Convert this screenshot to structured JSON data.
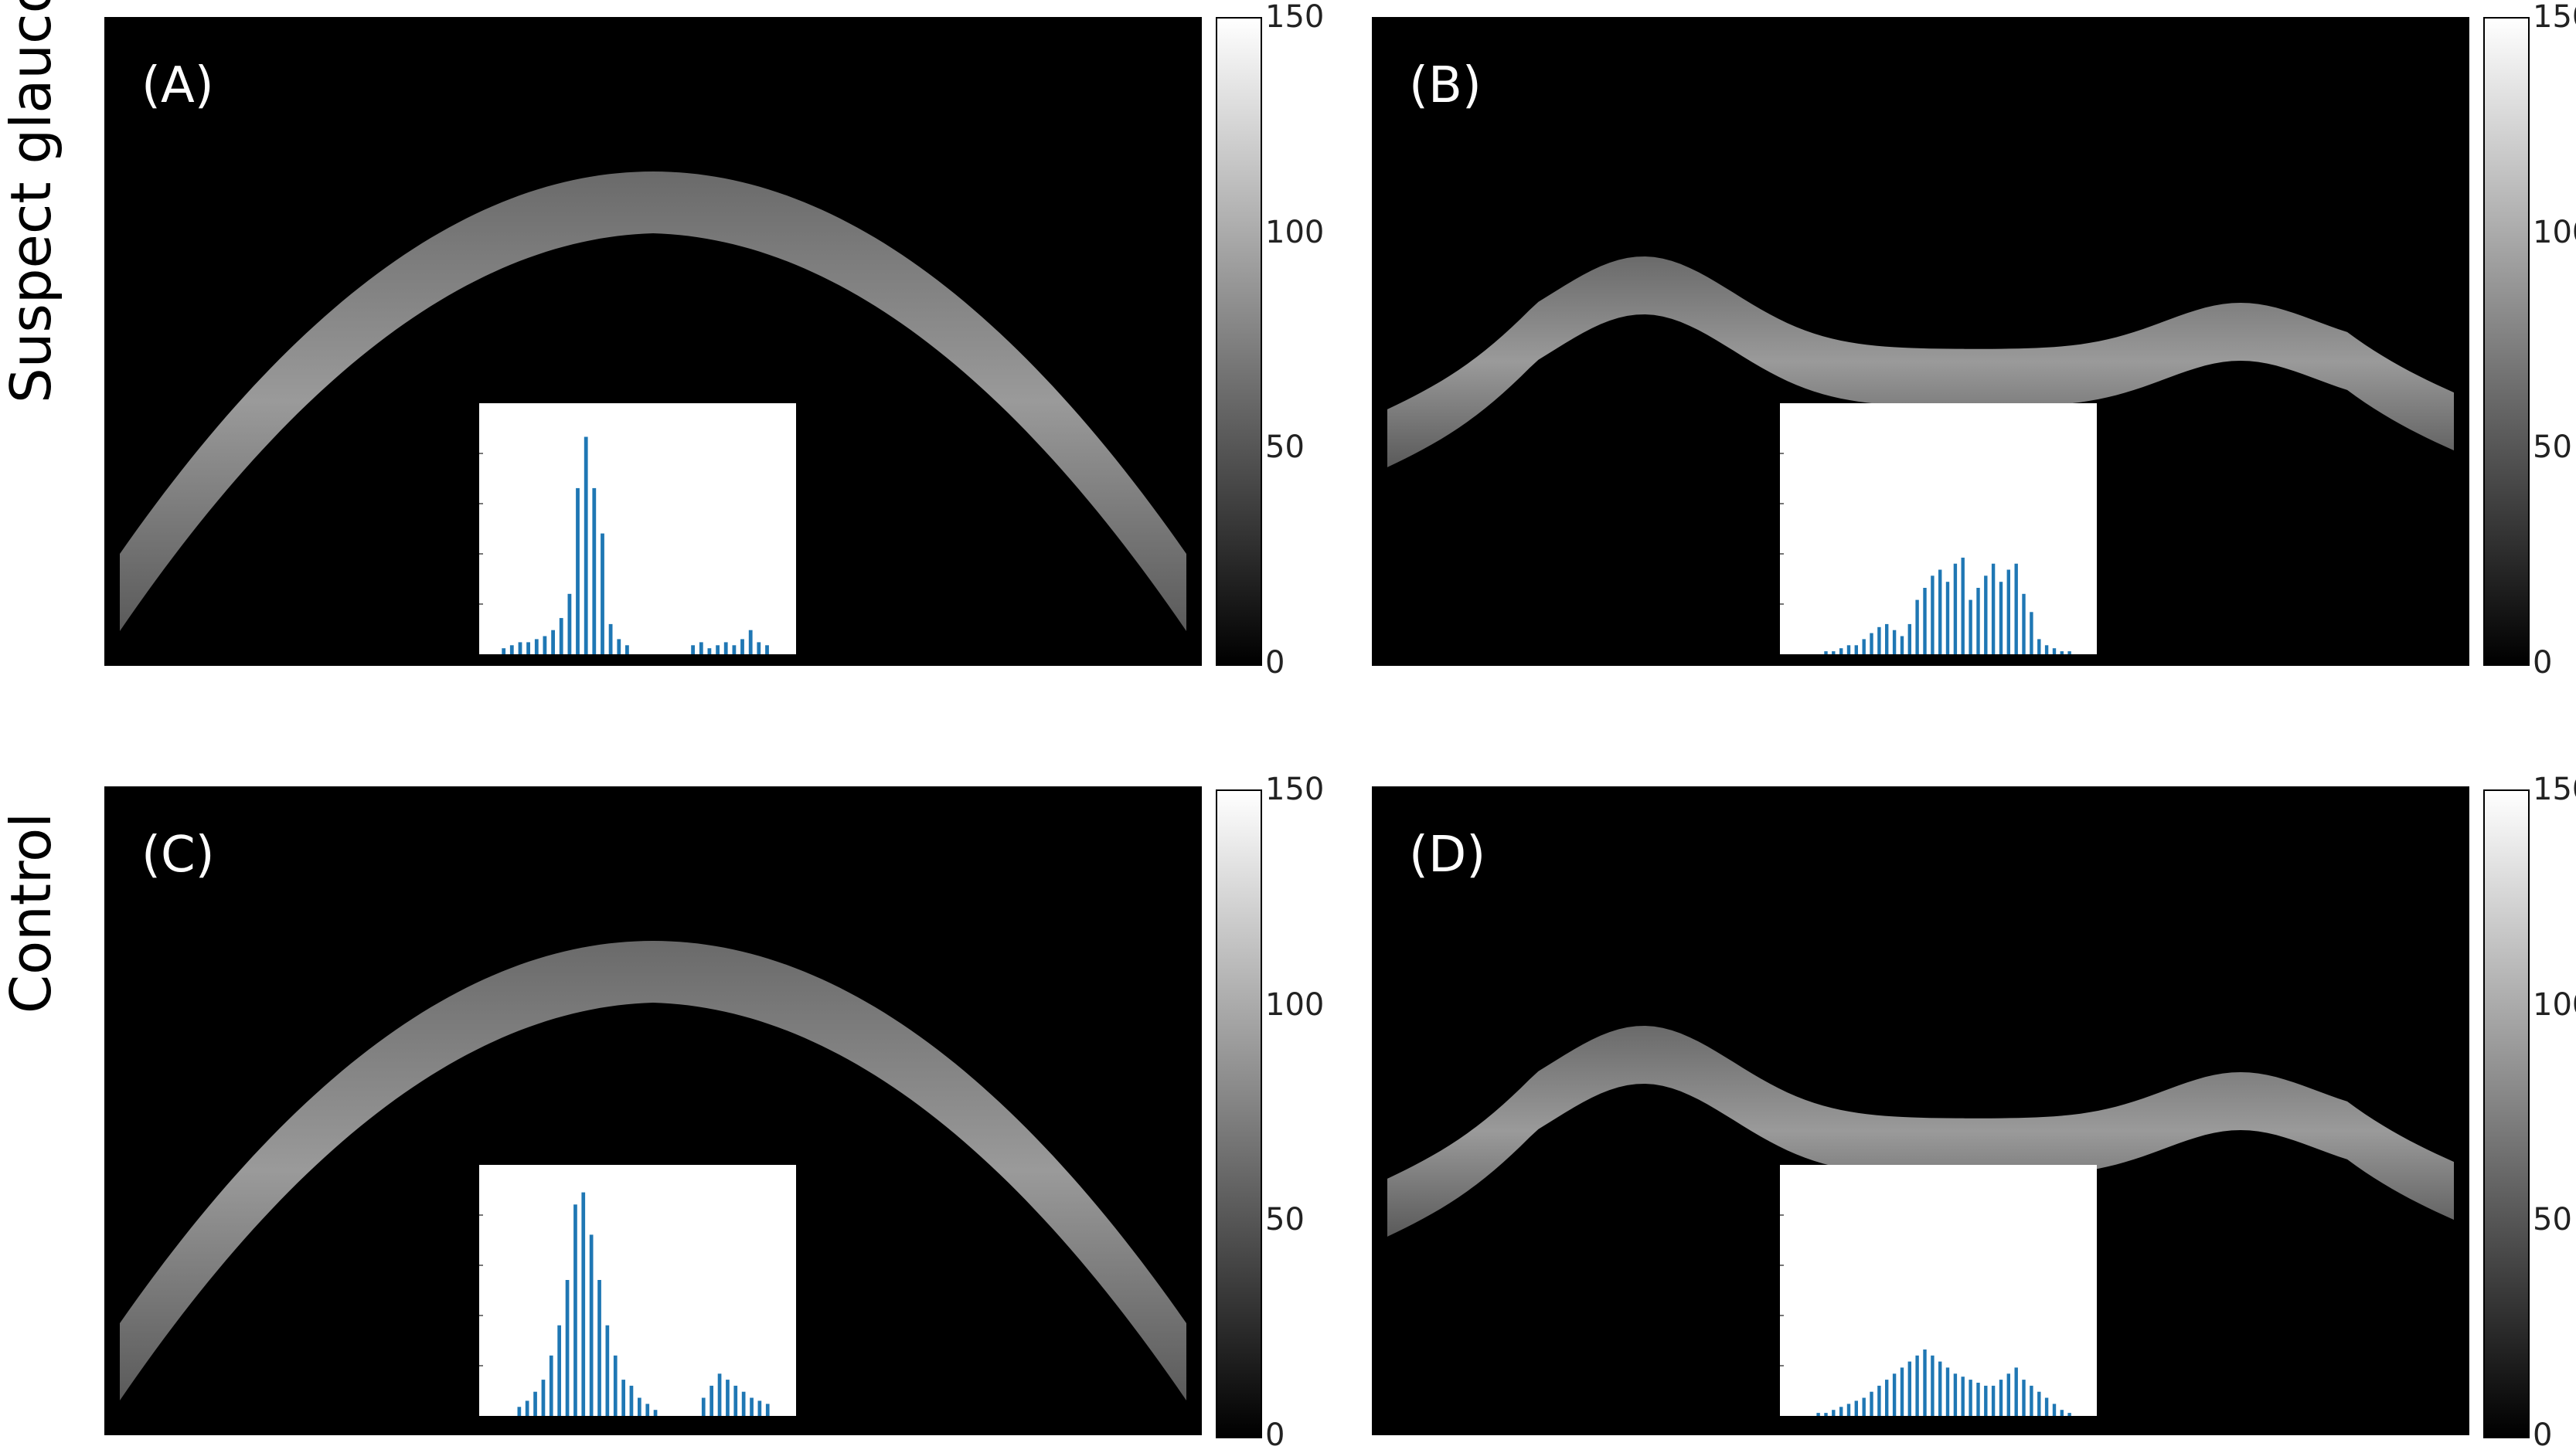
{
  "rows": [
    {
      "label": "Suspect glaucoma"
    },
    {
      "label": "Control"
    }
  ],
  "panels": [
    {
      "label": "(A)",
      "shape": "arc",
      "hist_key": "A"
    },
    {
      "label": "(B)",
      "shape": "saddle",
      "hist_key": "B"
    },
    {
      "label": "(C)",
      "shape": "arc",
      "hist_key": "C"
    },
    {
      "label": "(D)",
      "shape": "saddle",
      "hist_key": "D"
    }
  ],
  "colorbar": {
    "range": [
      0,
      150
    ],
    "ticks": [
      "150",
      "100",
      "50",
      "0"
    ],
    "colormap": "gray"
  },
  "histograms": {
    "A": [
      2,
      3,
      4,
      4,
      5,
      6,
      8,
      12,
      20,
      55,
      72,
      55,
      40,
      10,
      5,
      3,
      0,
      0,
      0,
      0,
      0,
      0,
      0,
      3,
      4,
      2,
      3,
      4,
      3,
      5,
      8,
      4,
      3
    ],
    "B": [
      0,
      0,
      0,
      1,
      1,
      2,
      3,
      3,
      5,
      7,
      9,
      10,
      8,
      6,
      10,
      18,
      22,
      26,
      28,
      24,
      30,
      32,
      18,
      22,
      26,
      30,
      24,
      28,
      30,
      20,
      14,
      5,
      3,
      2,
      1,
      1
    ],
    "C": [
      0,
      0,
      3,
      5,
      8,
      12,
      20,
      30,
      45,
      70,
      74,
      60,
      45,
      30,
      20,
      12,
      10,
      6,
      4,
      2,
      0,
      0,
      0,
      0,
      0,
      6,
      10,
      14,
      12,
      10,
      8,
      6,
      5,
      4
    ],
    "D": [
      0,
      0,
      1,
      1,
      2,
      3,
      4,
      5,
      6,
      8,
      10,
      12,
      14,
      16,
      18,
      20,
      22,
      20,
      18,
      16,
      14,
      13,
      12,
      11,
      10,
      10,
      12,
      14,
      16,
      12,
      10,
      8,
      6,
      4,
      2,
      1
    ]
  },
  "colors": {
    "histogram_bar": "#1f77b4",
    "panel_bg": "#000000"
  }
}
